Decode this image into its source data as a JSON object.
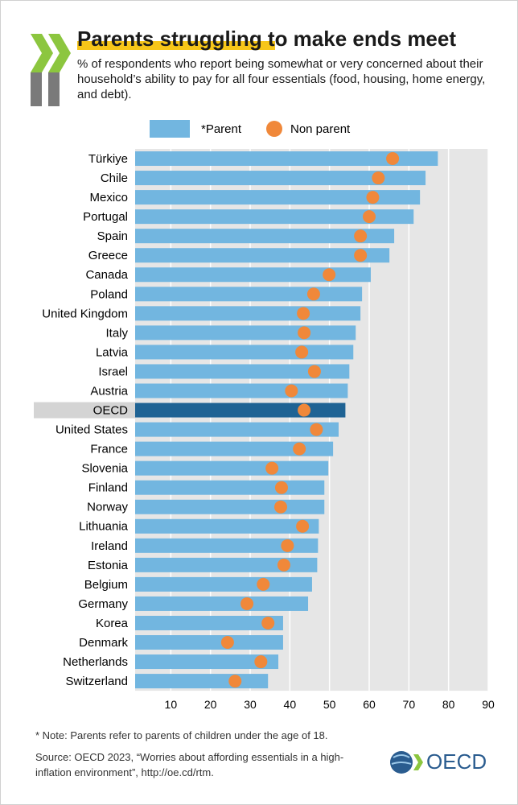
{
  "chart_data": {
    "type": "bar_dot",
    "title": "Parents struggling to make ends meet",
    "subtitle": "% of respondents who report being somewhat or very concerned about their household’s ability to pay for all four essentials (food, housing, home energy, and debt).",
    "categories": [
      "Türkiye",
      "Chile",
      "Mexico",
      "Portugal",
      "Spain",
      "Greece",
      "Canada",
      "Poland",
      "United Kingdom",
      "Italy",
      "Latvia",
      "Israel",
      "Austria",
      "OECD",
      "United States",
      "France",
      "Slovenia",
      "Finland",
      "Norway",
      "Lithuania",
      "Ireland",
      "Estonia",
      "Belgium",
      "Germany",
      "Korea",
      "Denmark",
      "Netherlands",
      "Switzerland"
    ],
    "series": [
      {
        "name": "*Parent",
        "color": "#72b6e0",
        "values": [
          77.3,
          74.2,
          72.8,
          71.2,
          66.3,
          65.1,
          60.4,
          58.2,
          57.8,
          56.6,
          56.0,
          55.0,
          54.6,
          54.0,
          52.3,
          50.9,
          49.7,
          48.7,
          48.7,
          47.3,
          47.1,
          46.9,
          45.6,
          44.6,
          38.3,
          38.3,
          37.1,
          34.5
        ]
      },
      {
        "name": "Non parent",
        "color": "#f0883a",
        "values": [
          65.9,
          62.3,
          60.9,
          60.0,
          57.8,
          57.8,
          49.9,
          46.0,
          43.4,
          43.6,
          43.0,
          46.2,
          40.4,
          43.6,
          46.7,
          42.4,
          35.5,
          37.9,
          37.7,
          43.2,
          39.4,
          38.5,
          33.3,
          29.2,
          34.5,
          24.3,
          32.7,
          26.2
        ]
      }
    ],
    "highlight": {
      "index": 13,
      "color": "#1f6394",
      "label_background": "#d4d4d4"
    },
    "xlim": [
      0,
      90
    ],
    "xticks": [
      10,
      20,
      30,
      40,
      50,
      60,
      70,
      80,
      90
    ],
    "grid": true,
    "note": "* Note: Parents refer to parents of children under the age of 18.",
    "source": "Source: OECD 2023, “Worries about affording essentials in a high-inflation environment”,  http://oe.cd/rtm.",
    "logo_text": "OECD"
  }
}
